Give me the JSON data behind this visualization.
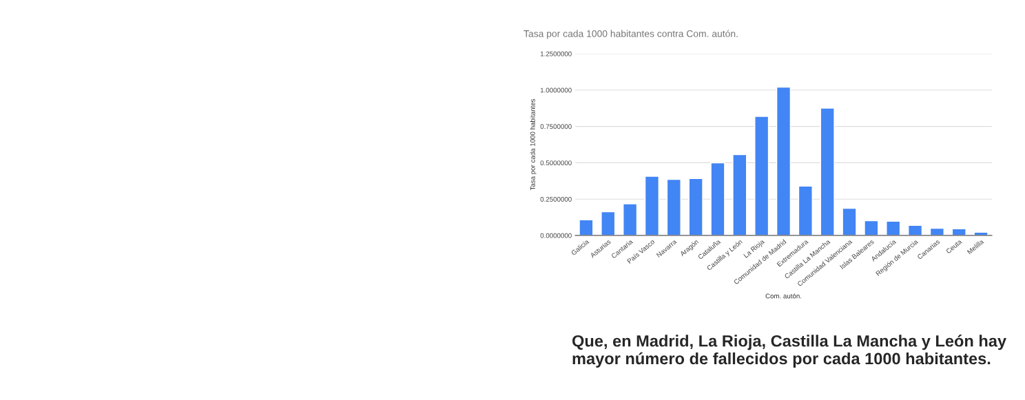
{
  "chart_data": {
    "type": "bar",
    "title": "Tasa por cada 1000 habitantes contra Com. autón.",
    "xlabel": "Com. autón.",
    "ylabel": "Tasa por cada 1000 habitantes",
    "categories": [
      "Galicia",
      "Asturias",
      "Cantaria",
      "País Vasco",
      "Navarra",
      "Aragón",
      "Cataluña",
      "Castilla y León",
      "La Rioja",
      "Comunidad de Madrid",
      "Extremadura",
      "Castilla La Mancha",
      "Comunidad Valenciana",
      "Islas Baleares",
      "Andalucía",
      "Región de Murcia",
      "Canarias",
      "Ceuta",
      "Melilla"
    ],
    "values": [
      0.107,
      0.163,
      0.218,
      0.407,
      0.386,
      0.392,
      0.499,
      0.556,
      0.819,
      1.02,
      0.34,
      0.876,
      0.187,
      0.102,
      0.098,
      0.07,
      0.05,
      0.046,
      0.022
    ],
    "color": "#4285f4",
    "ylim": [
      0,
      1.25
    ],
    "yticks": [
      {
        "value": 0,
        "label": "0.0000000"
      },
      {
        "value": 0.25,
        "label": "0.2500000"
      },
      {
        "value": 0.5,
        "label": "0.5000000"
      },
      {
        "value": 0.75,
        "label": "0.7500000"
      },
      {
        "value": 1.0,
        "label": "1.0000000"
      },
      {
        "value": 1.25,
        "label": "1.2500000"
      }
    ],
    "grid": "y",
    "annotations": [
      "Que, en Madrid, La Rioja, Castilla La Mancha y León hay mayor número de fallecidos por cada 1000 habitantes."
    ]
  }
}
